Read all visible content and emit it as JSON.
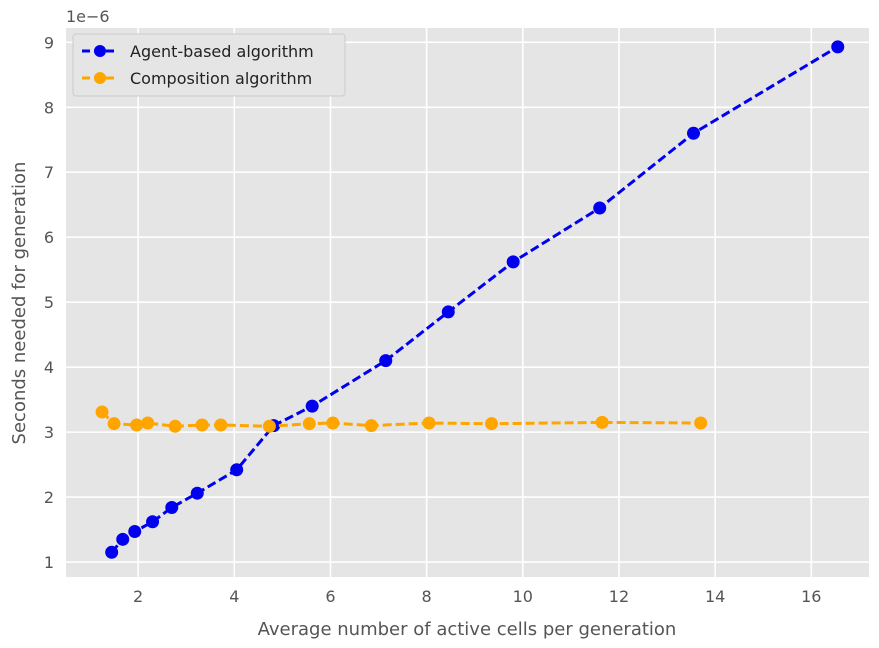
{
  "chart_data": {
    "type": "line",
    "xlabel": "Average number of active cells per generation",
    "ylabel": "Seconds needed for generation",
    "y_offset_label": "1e−6",
    "xlim": [
      0.5,
      17.2
    ],
    "ylim": [
      0.77,
      9.22
    ],
    "xticks": [
      2,
      4,
      6,
      8,
      10,
      12,
      14,
      16
    ],
    "yticks": [
      1,
      2,
      3,
      4,
      5,
      6,
      7,
      8,
      9
    ],
    "grid": true,
    "legend_position": "top-left",
    "series": [
      {
        "name": "Agent-based algorithm",
        "color": "#0000ee",
        "x": [
          1.45,
          1.68,
          1.93,
          2.3,
          2.7,
          3.23,
          4.05,
          4.82,
          5.62,
          7.15,
          8.45,
          9.8,
          11.6,
          13.55,
          16.55
        ],
        "y": [
          1.15,
          1.35,
          1.47,
          1.62,
          1.84,
          2.06,
          2.42,
          3.1,
          3.4,
          4.1,
          4.85,
          5.62,
          6.45,
          7.6,
          8.93
        ]
      },
      {
        "name": "Composition algorithm",
        "color": "#ffa500",
        "x": [
          1.25,
          1.5,
          1.97,
          2.2,
          2.77,
          3.33,
          3.72,
          4.73,
          5.56,
          6.05,
          6.85,
          8.05,
          9.35,
          11.65,
          13.7
        ],
        "y": [
          3.31,
          3.13,
          3.11,
          3.14,
          3.09,
          3.11,
          3.11,
          3.09,
          3.13,
          3.14,
          3.1,
          3.14,
          3.13,
          3.15,
          3.14
        ]
      }
    ]
  }
}
